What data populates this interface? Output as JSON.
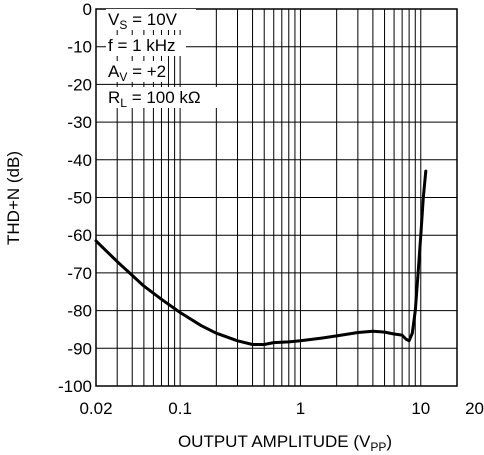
{
  "chart_data": {
    "type": "line",
    "xlabel": {
      "main": "OUTPUT AMPLITUDE (V",
      "sub": "PP",
      "tail": ")"
    },
    "ylabel": "THD+N (dB)",
    "x_scale": "log",
    "xlim": [
      0.02,
      20
    ],
    "ylim": [
      -100,
      0
    ],
    "x_ticks": [
      {
        "value": 0.02,
        "label": "0.02"
      },
      {
        "value": 0.1,
        "label": "0.1"
      },
      {
        "value": 1,
        "label": "1"
      },
      {
        "value": 10,
        "label": "10"
      },
      {
        "value": 20,
        "label": "20"
      }
    ],
    "y_ticks": [
      {
        "value": 0,
        "label": "0"
      },
      {
        "value": -10,
        "label": "-10"
      },
      {
        "value": -20,
        "label": "-20"
      },
      {
        "value": -30,
        "label": "-30"
      },
      {
        "value": -40,
        "label": "-40"
      },
      {
        "value": -50,
        "label": "-50"
      },
      {
        "value": -60,
        "label": "-60"
      },
      {
        "value": -70,
        "label": "-70"
      },
      {
        "value": -80,
        "label": "-80"
      },
      {
        "value": -90,
        "label": "-90"
      },
      {
        "value": -100,
        "label": "-100"
      }
    ],
    "grid": true,
    "annotations": [
      {
        "main": "V",
        "sub": "S",
        "tail": " = 10V"
      },
      {
        "main": "f = 1 kHz",
        "sub": "",
        "tail": ""
      },
      {
        "main": "A",
        "sub": "V",
        "tail": " = +2"
      },
      {
        "main": "R",
        "sub": "L",
        "tail": " = 100 kΩ"
      }
    ],
    "series": [
      {
        "color": "#000000",
        "x": [
          0.02,
          0.03,
          0.05,
          0.07,
          0.1,
          0.15,
          0.2,
          0.3,
          0.4,
          0.5,
          0.6,
          0.8,
          1.0,
          1.5,
          2.0,
          3.0,
          4.0,
          5.0,
          6.0,
          7.0,
          7.5,
          8.0,
          8.5,
          9.0,
          9.5,
          10.0,
          10.5,
          11.0
        ],
        "y": [
          -61.5,
          -67,
          -73.5,
          -77,
          -80.5,
          -84,
          -86,
          -88,
          -89,
          -89,
          -88.5,
          -88.3,
          -88,
          -87.3,
          -86.7,
          -85.8,
          -85.5,
          -85.7,
          -86.2,
          -86.5,
          -87.5,
          -88,
          -86,
          -80,
          -70,
          -60,
          -50,
          -43
        ]
      }
    ]
  }
}
